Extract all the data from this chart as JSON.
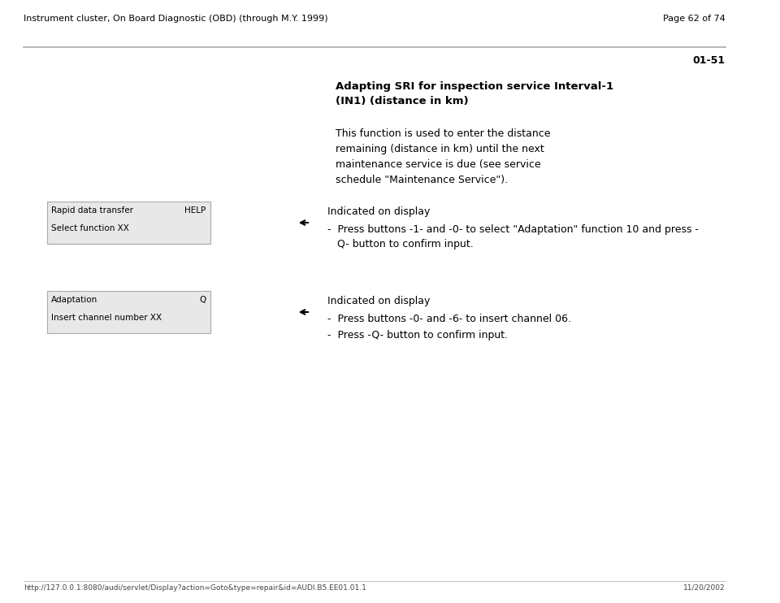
{
  "page_bg": "#ffffff",
  "header_left": "Instrument cluster, On Board Diagnostic (OBD) (through M.Y. 1999)",
  "header_right": "Page 62 of 74",
  "page_number": "01-51",
  "header_font_size": 8,
  "page_num_font_size": 9,
  "title_bold": "Adapting SRI for inspection service Interval-1\n(IN1) (distance in km)",
  "body_text": "This function is used to enter the distance\nremaining (distance in km) until the next\nmaintenance service is due (see service\nschedule \"Maintenance Service\").",
  "box1_line1": "Rapid data transfer",
  "box1_line1_right": "HELP",
  "box1_line2": "Select function XX",
  "box1_indicated": "Indicated on display",
  "box1_bullet1": "-  Press buttons -1- and -0- to select \"Adaptation\" function 10 and press -\n   Q- button to confirm input.",
  "box2_line1": "Adaptation",
  "box2_line1_right": "Q",
  "box2_line2": "Insert channel number XX",
  "box2_indicated": "Indicated on display",
  "box2_bullet1": "-  Press buttons -0- and -6- to insert channel 06.",
  "box2_bullet2": "-  Press -Q- button to confirm input.",
  "footer_url": "http://127.0.0.1:8080/audi/servlet/Display?action=Goto&type=repair&id=AUDI.B5.EE01.01.1",
  "footer_date": "11/20/2002",
  "box_bg": "#e8e8e8",
  "box_border": "#aaaaaa",
  "line_color": "#999999",
  "text_color": "#000000",
  "header_line_color": "#aaaaaa"
}
